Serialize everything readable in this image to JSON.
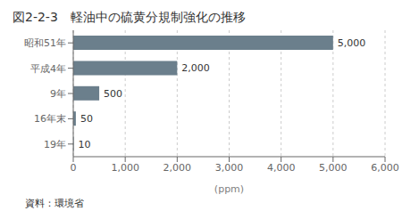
{
  "chart_data": {
    "type": "bar",
    "orientation": "horizontal",
    "title": "図2-2-3　軽油中の硫黄分規制強化の推移",
    "categories": [
      "昭和51年",
      "平成4年",
      "9年",
      "16年末",
      "19年"
    ],
    "values": [
      5000,
      2000,
      500,
      50,
      10
    ],
    "value_labels": [
      "5,000",
      "2,000",
      "500",
      "50",
      "10"
    ],
    "data_labels": true,
    "color": "#6b7f8c",
    "xlabel": "(ppm)",
    "xlim": [
      0,
      6000
    ],
    "xticks": [
      0,
      {
        "value": 1000,
        "label": "1,000"
      },
      {
        "value": 2000,
        "label": "2,000"
      },
      {
        "value": 3000,
        "label": "3,000"
      },
      {
        "value": 4000,
        "label": "4,000"
      },
      {
        "value": 5000,
        "label": "5,000"
      },
      {
        "value": 6000,
        "label": "6,000"
      }
    ],
    "grid": true,
    "annotations": [
      "資料：環境省"
    ]
  }
}
